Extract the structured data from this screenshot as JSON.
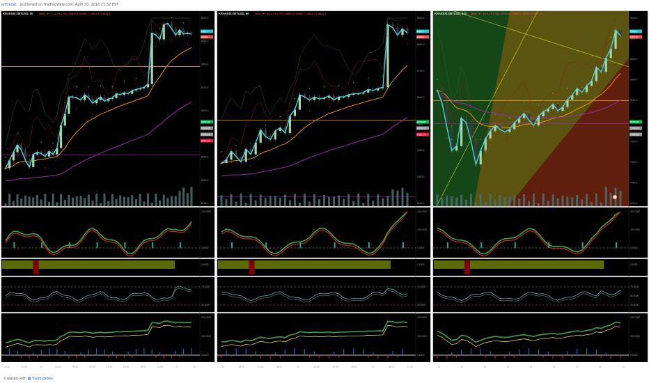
{
  "header": {
    "author": "jeffcadet",
    "published": "published on TradingView.com, April 20, 2018 21:32 EST"
  },
  "footer": {
    "created_with": "Created with",
    "brand": "TradingView"
  },
  "colors": {
    "bg": "#000000",
    "price": "#4dd0e1",
    "ema_orange": "#ff9800",
    "ema_purple": "#9c27b0",
    "hline_orange": "#ffa726",
    "macd_up": "#43a047",
    "macd_down": "#c62828",
    "dots_green": "#00e676",
    "dots_red": "#ff1744",
    "box_olive": "#5c6b00",
    "vol_bar": "#4a6b6b"
  },
  "icons": {
    "logo": "tradingview-logo-icon",
    "sync": "sync-icon"
  },
  "panes": [
    {
      "title": "KRAKEN:XBTUSD, 30",
      "ticker": "8859.7▼ −15.3 (−0.17%) O:8825.6 H:8859.7 L:8825.6 C:8849.4",
      "price_labels": [
        "8900.0",
        "8850.0",
        "8800.0",
        "8700.0",
        "8600.0",
        "8500.0",
        "8400.0",
        "8300.0",
        "8200.0"
      ],
      "price_tags": [
        {
          "text": "8851.7",
          "color": "#26c6da"
        },
        {
          "text": "8849.4",
          "color": "#ef5350"
        },
        {
          "text": "8276.99",
          "color": "#00c853"
        },
        {
          "text": "8240.90",
          "color": "#9e9e9e"
        },
        {
          "text": "8201.04",
          "color": "#9e9e9e"
        },
        {
          "text": "8087.19",
          "color": "#ff1744"
        }
      ],
      "macd_labels": [
        "100.0000",
        "0.0000"
      ],
      "box_labels": [
        "0.0000"
      ],
      "rsi_labels": [
        "75.0000",
        "25.0000"
      ],
      "osc_labels": [
        "200.0000",
        "100.0000",
        "0.0000"
      ],
      "time_labels": [
        "20:00",
        "21:00",
        "20",
        "03:00",
        "06:00",
        "09:00",
        "12:00",
        "15:00",
        "18:00",
        "21:00",
        "21",
        "03"
      ]
    },
    {
      "title": "KRAKEN:XBTUSD, 60",
      "ticker": "8859.7▼ −15.3 (−0.17%) O:8869.3 H:8859.7 L:8804.3 C:8849.1",
      "price_labels": [
        "8900.0",
        "8800.0",
        "8700.0",
        "8600.0",
        "8500.0",
        "8400.0",
        "8300.0",
        "8200.0"
      ],
      "price_tags": [
        {
          "text": "8859.7",
          "color": "#26c6da"
        },
        {
          "text": "8849.4",
          "color": "#ef5350"
        },
        {
          "text": "8276.80",
          "color": "#00c853"
        },
        {
          "text": "8201.97",
          "color": "#9e9e9e"
        },
        {
          "text": "8087.10",
          "color": "#ff1744"
        }
      ],
      "macd_labels": [
        "200.0000",
        "100.0000",
        "0.0000"
      ],
      "box_labels": [
        "0.0000"
      ],
      "rsi_labels": [
        "75.0000",
        "25.0000"
      ],
      "osc_labels": [
        "400.0000",
        "200.0000",
        "0.0000"
      ],
      "time_labels": [
        "19",
        "06:00",
        "12:00",
        "18:00",
        "20",
        "06:00",
        "12:00",
        "18:00",
        "21",
        "06:00",
        "12:00"
      ]
    },
    {
      "title": "KRAKEN:XBTUSD, 240",
      "ticker": "8859.7▼ −15.3 (−0.17%) O:8797.8 H:8888.1 L:8797.8 C:8847.5",
      "price_labels": [
        "9000.0",
        "8800.0",
        "8600.0",
        "8400.0",
        "8200.0",
        "8000.0",
        "7800.0",
        "7600.0",
        "7400.0",
        "7200.0"
      ],
      "price_tags": [
        {
          "text": "8888.0",
          "color": "#26c6da"
        },
        {
          "text": "8847.5",
          "color": "#ef5350"
        },
        {
          "text": "8276.99",
          "color": "#00c853"
        },
        {
          "text": "7209.13",
          "color": "#9e9e9e"
        },
        {
          "text": "7086.99",
          "color": "#9e9e9e"
        }
      ],
      "macd_labels": [
        "400.0000",
        "200.0000",
        "0.0000"
      ],
      "box_labels": [
        "0.0000"
      ],
      "rsi_labels": [
        "75.0000",
        "50.0000",
        "25.0000"
      ],
      "osc_labels": [
        "400.0000",
        "200.0000",
        "0.0000"
      ],
      "time_labels": [
        "16",
        "17",
        "18",
        "19",
        "20",
        "21",
        "22",
        "23",
        "24"
      ]
    }
  ],
  "chart_data": [
    {
      "type": "line",
      "title": "KRAKEN:XBTUSD, 30",
      "x": [
        0,
        1,
        2,
        3,
        4,
        5,
        6,
        7,
        8,
        9,
        10,
        11,
        12,
        13,
        14,
        15,
        16,
        17,
        18,
        19,
        20,
        21,
        22,
        23,
        24,
        25,
        26,
        27,
        28,
        29,
        30,
        31,
        32,
        33,
        34,
        35,
        36,
        37,
        38,
        39,
        40,
        41,
        42,
        43,
        44,
        45,
        46,
        47
      ],
      "series": [
        {
          "name": "",
          "values": [
            8225,
            8262,
            8300,
            8335,
            8310,
            8262,
            8230,
            8290,
            8300,
            8295,
            8280,
            8305,
            8290,
            8320,
            8425,
            8480,
            8560,
            8560,
            8555,
            8545,
            8570,
            8555,
            8530,
            8545,
            8560,
            8540,
            8550,
            8555,
            8575,
            8570,
            8580,
            8575,
            8590,
            8595,
            8600,
            8605,
            8620,
            8860,
            8850,
            8830,
            8900,
            8905,
            8880,
            8850,
            8875,
            8855,
            8860,
            8855
          ]
        }
      ],
      "ylim": [
        8060,
        8930
      ],
      "hlines": [
        8703,
        8288
      ]
    },
    {
      "type": "line",
      "title": "KRAKEN:XBTUSD, 60",
      "x": [
        0,
        1,
        2,
        3,
        4,
        5,
        6,
        7,
        8,
        9,
        10,
        11,
        12,
        13,
        14,
        15,
        16,
        17,
        18,
        19,
        20,
        21,
        22,
        23,
        24,
        25,
        26,
        27,
        28,
        29,
        30,
        31,
        32,
        33,
        34,
        35,
        36,
        37,
        38
      ],
      "series": [
        {
          "name": "",
          "values": [
            8250,
            8265,
            8305,
            8280,
            8255,
            8315,
            8290,
            8345,
            8405,
            8375,
            8360,
            8400,
            8415,
            8390,
            8470,
            8500,
            8570,
            8560,
            8545,
            8560,
            8550,
            8555,
            8565,
            8545,
            8560,
            8560,
            8570,
            8575,
            8575,
            8580,
            8595,
            8590,
            8600,
            8605,
            8900,
            8885,
            8850,
            8880,
            8860
          ]
        }
      ],
      "ylim": [
        8060,
        8930
      ],
      "hlines": [
        8450,
        8090
      ]
    },
    {
      "type": "line",
      "title": "KRAKEN:XBTUSD, 240",
      "x": [
        0,
        1,
        2,
        3,
        4,
        5,
        6,
        7,
        8,
        9,
        10,
        11,
        12,
        13,
        14,
        15,
        16,
        17,
        18,
        19,
        20,
        21,
        22,
        23,
        24,
        25,
        26,
        27,
        28,
        29,
        30,
        31,
        32,
        33,
        34,
        35,
        36,
        37,
        38
      ],
      "series": [
        {
          "name": "",
          "values": [
            8300,
            8160,
            7900,
            7650,
            7700,
            8000,
            7950,
            7750,
            7500,
            7650,
            7780,
            7860,
            7920,
            7880,
            7850,
            7880,
            7950,
            8000,
            8050,
            7980,
            7920,
            8020,
            8070,
            8100,
            8150,
            8080,
            8120,
            8200,
            8250,
            8320,
            8280,
            8350,
            8400,
            8550,
            8500,
            8650,
            8750,
            8950,
            8890
          ]
        }
      ],
      "ylim": [
        7080,
        9080
      ],
      "hlines": [
        8190,
        7940
      ]
    }
  ]
}
